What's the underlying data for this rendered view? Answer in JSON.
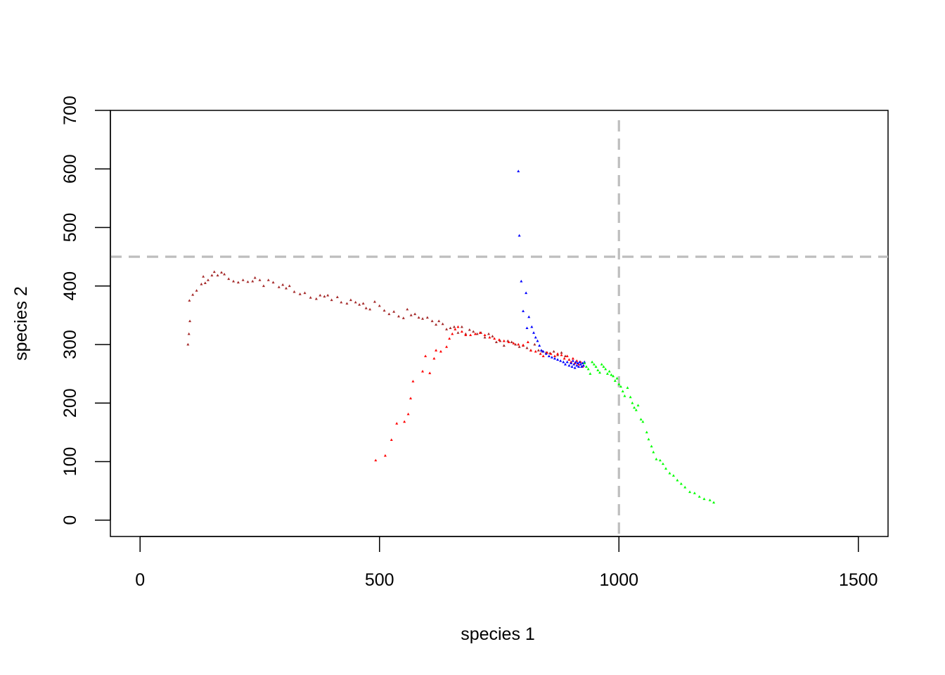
{
  "chart_data": {
    "type": "scatter",
    "title": "",
    "xlabel": "species 1",
    "ylabel": "species 2",
    "xlim": [
      -62,
      1562
    ],
    "ylim": [
      -28,
      700
    ],
    "xticks": [
      0,
      500,
      1000,
      1500
    ],
    "yticks": [
      0,
      100,
      200,
      300,
      400,
      500,
      600,
      700
    ],
    "xtick_labels": [
      "0",
      "500",
      "1000",
      "1500"
    ],
    "ytick_labels": [
      "0",
      "100",
      "200",
      "300",
      "400",
      "500",
      "600",
      "700"
    ],
    "reference_lines": [
      {
        "orientation": "vertical",
        "value": 1000,
        "color": "#bebebe",
        "style": "dashed"
      },
      {
        "orientation": "horizontal",
        "value": 450,
        "color": "#bebebe",
        "style": "dashed"
      }
    ],
    "series": [
      {
        "name": "brown trajectory",
        "color": "#a52a2a",
        "points": [
          [
            100,
            300
          ],
          [
            102,
            318
          ],
          [
            104,
            340
          ],
          [
            103,
            375
          ],
          [
            110,
            385
          ],
          [
            118,
            392
          ],
          [
            128,
            403
          ],
          [
            132,
            416
          ],
          [
            136,
            405
          ],
          [
            142,
            410
          ],
          [
            150,
            418
          ],
          [
            155,
            424
          ],
          [
            162,
            418
          ],
          [
            170,
            423
          ],
          [
            176,
            420
          ],
          [
            185,
            412
          ],
          [
            195,
            408
          ],
          [
            205,
            406
          ],
          [
            215,
            410
          ],
          [
            225,
            407
          ],
          [
            235,
            408
          ],
          [
            240,
            414
          ],
          [
            250,
            410
          ],
          [
            258,
            400
          ],
          [
            268,
            410
          ],
          [
            278,
            406
          ],
          [
            290,
            398
          ],
          [
            298,
            402
          ],
          [
            305,
            396
          ],
          [
            312,
            400
          ],
          [
            322,
            390
          ],
          [
            334,
            386
          ],
          [
            344,
            388
          ],
          [
            356,
            380
          ],
          [
            368,
            378
          ],
          [
            376,
            384
          ],
          [
            385,
            382
          ],
          [
            392,
            384
          ],
          [
            400,
            376
          ],
          [
            412,
            381
          ],
          [
            420,
            372
          ],
          [
            432,
            370
          ],
          [
            440,
            376
          ],
          [
            450,
            372
          ],
          [
            458,
            368
          ],
          [
            466,
            370
          ],
          [
            472,
            362
          ],
          [
            480,
            360
          ],
          [
            490,
            373
          ],
          [
            500,
            366
          ],
          [
            510,
            358
          ],
          [
            520,
            352
          ],
          [
            530,
            356
          ],
          [
            540,
            348
          ],
          [
            550,
            345
          ],
          [
            558,
            360
          ],
          [
            566,
            350
          ],
          [
            574,
            352
          ],
          [
            582,
            346
          ],
          [
            590,
            344
          ],
          [
            600,
            346
          ],
          [
            610,
            340
          ],
          [
            618,
            334
          ],
          [
            624,
            340
          ],
          [
            632,
            335
          ],
          [
            640,
            326
          ],
          [
            648,
            328
          ],
          [
            656,
            330
          ],
          [
            664,
            320
          ],
          [
            672,
            330
          ],
          [
            680,
            318
          ],
          [
            688,
            325
          ],
          [
            696,
            322
          ],
          [
            704,
            318
          ],
          [
            712,
            320
          ],
          [
            720,
            312
          ],
          [
            728,
            318
          ],
          [
            736,
            314
          ],
          [
            744,
            304
          ],
          [
            752,
            306
          ],
          [
            760,
            298
          ],
          [
            768,
            306
          ],
          [
            776,
            304
          ],
          [
            784,
            300
          ],
          [
            792,
            296
          ],
          [
            800,
            298
          ],
          [
            808,
            294
          ],
          [
            816,
            290
          ],
          [
            824,
            300
          ],
          [
            832,
            290
          ],
          [
            840,
            288
          ],
          [
            848,
            286
          ],
          [
            856,
            285
          ],
          [
            864,
            288
          ],
          [
            872,
            282
          ],
          [
            880,
            286
          ],
          [
            888,
            280
          ]
        ]
      },
      {
        "name": "red trajectory",
        "color": "#ff0000",
        "points": [
          [
            492,
            102
          ],
          [
            512,
            110
          ],
          [
            525,
            137
          ],
          [
            536,
            165
          ],
          [
            552,
            168
          ],
          [
            560,
            181
          ],
          [
            565,
            208
          ],
          [
            570,
            237
          ],
          [
            590,
            254
          ],
          [
            605,
            251
          ],
          [
            596,
            280
          ],
          [
            614,
            276
          ],
          [
            618,
            290
          ],
          [
            628,
            288
          ],
          [
            640,
            296
          ],
          [
            646,
            310
          ],
          [
            652,
            318
          ],
          [
            658,
            326
          ],
          [
            664,
            330
          ],
          [
            672,
            322
          ],
          [
            680,
            316
          ],
          [
            690,
            316
          ],
          [
            700,
            318
          ],
          [
            710,
            320
          ],
          [
            720,
            316
          ],
          [
            730,
            312
          ],
          [
            740,
            310
          ],
          [
            750,
            308
          ],
          [
            760,
            306
          ],
          [
            770,
            304
          ],
          [
            780,
            302
          ],
          [
            790,
            300
          ],
          [
            800,
            299
          ],
          [
            810,
            304
          ],
          [
            816,
            290
          ],
          [
            826,
            288
          ],
          [
            836,
            284
          ],
          [
            842,
            280
          ],
          [
            850,
            286
          ],
          [
            858,
            284
          ],
          [
            866,
            280
          ],
          [
            872,
            284
          ],
          [
            880,
            282
          ],
          [
            886,
            276
          ],
          [
            892,
            280
          ],
          [
            896,
            274
          ],
          [
            900,
            270
          ],
          [
            904,
            276
          ],
          [
            908,
            268
          ],
          [
            912,
            272
          ],
          [
            916,
            266
          ],
          [
            920,
            270
          ],
          [
            924,
            262
          ]
        ]
      },
      {
        "name": "blue trajectory",
        "color": "#0000ff",
        "points": [
          [
            790,
            596
          ],
          [
            792,
            486
          ],
          [
            796,
            408
          ],
          [
            800,
            357
          ],
          [
            806,
            388
          ],
          [
            808,
            328
          ],
          [
            812,
            347
          ],
          [
            818,
            330
          ],
          [
            822,
            320
          ],
          [
            826,
            312
          ],
          [
            830,
            306
          ],
          [
            834,
            298
          ],
          [
            838,
            290
          ],
          [
            842,
            288
          ],
          [
            848,
            284
          ],
          [
            854,
            280
          ],
          [
            860,
            278
          ],
          [
            866,
            276
          ],
          [
            872,
            274
          ],
          [
            878,
            272
          ],
          [
            884,
            270
          ],
          [
            888,
            266
          ],
          [
            892,
            270
          ],
          [
            896,
            264
          ],
          [
            900,
            268
          ],
          [
            902,
            262
          ],
          [
            904,
            272
          ],
          [
            906,
            266
          ],
          [
            908,
            260
          ],
          [
            910,
            270
          ],
          [
            912,
            264
          ],
          [
            914,
            268
          ],
          [
            916,
            262
          ],
          [
            918,
            270
          ],
          [
            920,
            266
          ],
          [
            922,
            262
          ],
          [
            924,
            268
          ],
          [
            926,
            264
          ],
          [
            928,
            270
          ]
        ]
      },
      {
        "name": "green trajectory",
        "color": "#00ff00",
        "points": [
          [
            928,
            268
          ],
          [
            932,
            262
          ],
          [
            936,
            258
          ],
          [
            940,
            250
          ],
          [
            944,
            270
          ],
          [
            948,
            266
          ],
          [
            952,
            262
          ],
          [
            956,
            256
          ],
          [
            960,
            252
          ],
          [
            964,
            266
          ],
          [
            968,
            262
          ],
          [
            972,
            258
          ],
          [
            976,
            250
          ],
          [
            980,
            254
          ],
          [
            984,
            248
          ],
          [
            988,
            246
          ],
          [
            992,
            238
          ],
          [
            996,
            242
          ],
          [
            1000,
            232
          ],
          [
            1004,
            228
          ],
          [
            1008,
            220
          ],
          [
            1012,
            212
          ],
          [
            1018,
            226
          ],
          [
            1024,
            210
          ],
          [
            1028,
            200
          ],
          [
            1032,
            192
          ],
          [
            1036,
            188
          ],
          [
            1040,
            196
          ],
          [
            1046,
            172
          ],
          [
            1050,
            168
          ],
          [
            1058,
            150
          ],
          [
            1062,
            138
          ],
          [
            1068,
            126
          ],
          [
            1072,
            116
          ],
          [
            1078,
            104
          ],
          [
            1086,
            102
          ],
          [
            1092,
            96
          ],
          [
            1098,
            88
          ],
          [
            1106,
            80
          ],
          [
            1114,
            76
          ],
          [
            1122,
            68
          ],
          [
            1130,
            62
          ],
          [
            1138,
            56
          ],
          [
            1148,
            48
          ],
          [
            1158,
            46
          ],
          [
            1168,
            40
          ],
          [
            1178,
            36
          ],
          [
            1190,
            34
          ],
          [
            1198,
            30
          ]
        ]
      }
    ]
  }
}
